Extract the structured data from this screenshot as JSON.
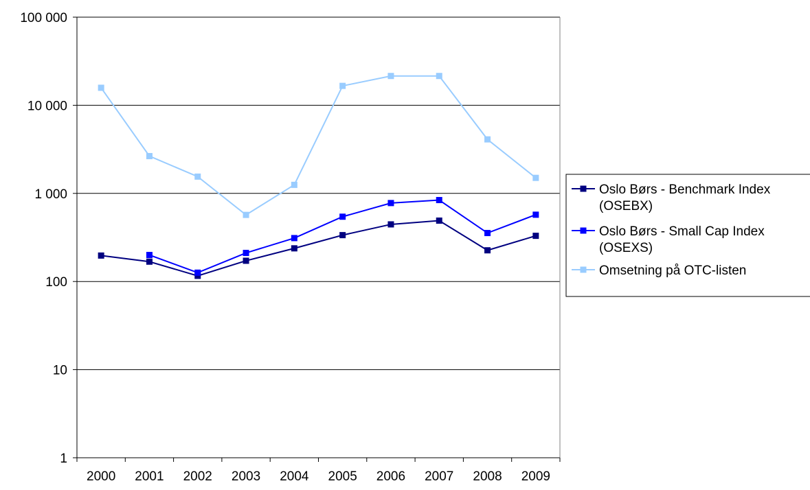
{
  "chart_data": {
    "type": "line",
    "title": "",
    "xlabel": "",
    "ylabel": "",
    "y_scale": "log",
    "ylim": [
      1,
      100000
    ],
    "grid": true,
    "legend_position": "right",
    "categories": [
      "2000",
      "2001",
      "2002",
      "2003",
      "2004",
      "2005",
      "2006",
      "2007",
      "2008",
      "2009"
    ],
    "y_ticks": [
      {
        "value": 1,
        "label": "1"
      },
      {
        "value": 10,
        "label": "10"
      },
      {
        "value": 100,
        "label": "100"
      },
      {
        "value": 1000,
        "label": "1 000"
      },
      {
        "value": 10000,
        "label": "10 000"
      },
      {
        "value": 100000,
        "label": "100 000"
      }
    ],
    "series": [
      {
        "name_lines": [
          "Oslo Børs - Benchmark Index",
          "(OSEBX)"
        ],
        "color": "#000080",
        "values": [
          197,
          168,
          116,
          172,
          238,
          336,
          445,
          491,
          226,
          330
        ]
      },
      {
        "name_lines": [
          "Oslo Børs - Small Cap Index",
          "(OSEXS)"
        ],
        "color": "#0000ff",
        "values": [
          null,
          200,
          126,
          211,
          311,
          544,
          777,
          840,
          355,
          573
        ]
      },
      {
        "name_lines": [
          "Omsetning på OTC-listen"
        ],
        "color": "#99ccff",
        "values": [
          15800,
          2650,
          1550,
          570,
          1250,
          16600,
          21500,
          21500,
          4100,
          1500
        ]
      }
    ]
  }
}
